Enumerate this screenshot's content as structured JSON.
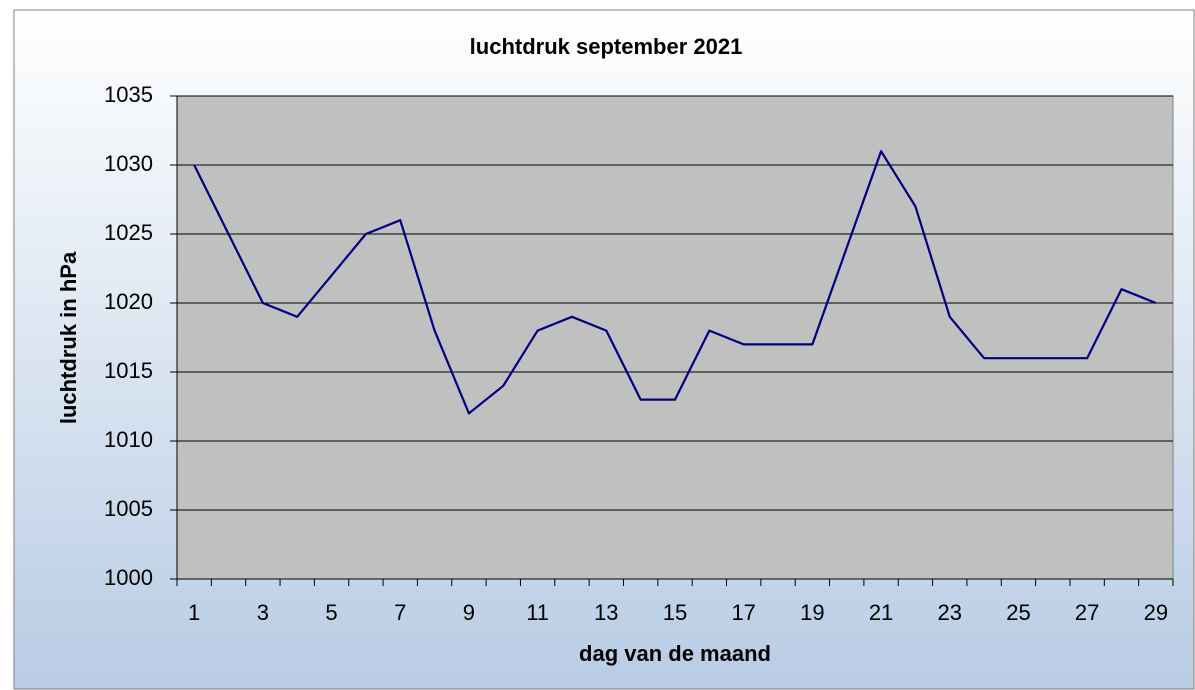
{
  "chart_data": {
    "type": "line",
    "title": "luchtdruk september 2021",
    "x_label": "dag van de maand",
    "y_label": "luchtdruk in hPa",
    "categories": [
      "1",
      null,
      "3",
      null,
      "5",
      null,
      "7",
      null,
      "9",
      null,
      "11",
      null,
      "13",
      null,
      "15",
      null,
      "17",
      null,
      "19",
      null,
      "21",
      null,
      "23",
      null,
      "25",
      null,
      "27",
      null,
      "29"
    ],
    "series": [
      {
        "color": "#000080",
        "values": [
          1030,
          1025,
          1020,
          1019,
          1022,
          1025,
          1026,
          1018,
          1012,
          1014,
          1018,
          1019,
          1018,
          1013,
          1013,
          1018,
          1017,
          1017,
          1017,
          1024,
          1031,
          1027,
          1019,
          1016,
          1016,
          1016,
          1016,
          1021,
          1020
        ]
      }
    ],
    "ylim": [
      1000,
      1035
    ],
    "yticks": [
      1000,
      1005,
      1010,
      1015,
      1020,
      1025,
      1030,
      1035
    ],
    "grid": true
  }
}
